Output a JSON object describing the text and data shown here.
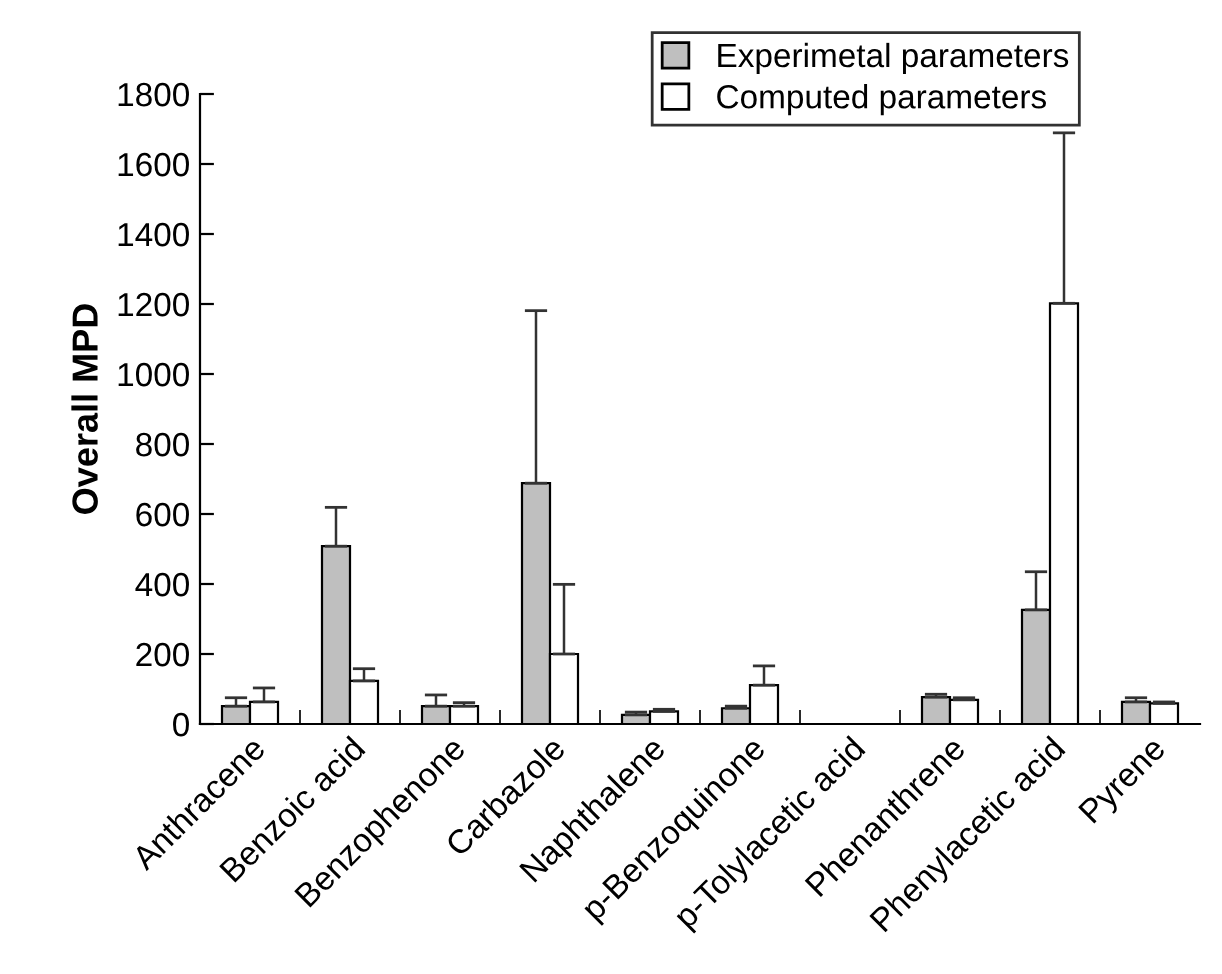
{
  "chart_data": {
    "type": "bar",
    "ylabel": "Overall MPD",
    "categories": [
      "Anthracene",
      "Benzoic acid",
      "Benzophenone",
      "Carbazole",
      "Naphthalene",
      "p-Benzoquinone",
      "p-Tolylacetic acid",
      "Phenanthrene",
      "Phenylacetic acid",
      "Pyrene"
    ],
    "series": [
      {
        "name": "Experimetal parameters",
        "color": "#bfbfbf",
        "values": [
          51,
          508,
          51,
          688,
          26,
          45,
          null,
          77,
          326,
          63
        ],
        "errors": [
          [
            51,
            75
          ],
          [
            508,
            619
          ],
          [
            51,
            83
          ],
          [
            688,
            1181
          ],
          [
            26,
            34
          ],
          [
            45,
            51
          ],
          null,
          [
            77,
            85
          ],
          [
            326,
            435
          ],
          [
            63,
            75
          ]
        ]
      },
      {
        "name": "Computed parameters",
        "color": "#ffffff",
        "values": [
          63,
          123,
          51,
          200,
          36,
          111,
          null,
          69,
          1202,
          59
        ],
        "errors": [
          [
            63,
            103
          ],
          [
            123,
            158
          ],
          [
            51,
            61
          ],
          [
            200,
            399
          ],
          [
            36,
            42
          ],
          [
            111,
            166
          ],
          null,
          [
            69,
            75
          ],
          [
            1202,
            1689
          ],
          [
            59,
            63
          ]
        ]
      }
    ],
    "ylim": [
      0,
      1800
    ],
    "yticks": [
      0,
      200,
      400,
      600,
      800,
      1000,
      1200,
      1400,
      1600,
      1800
    ],
    "grid": false,
    "legend": "top right"
  }
}
